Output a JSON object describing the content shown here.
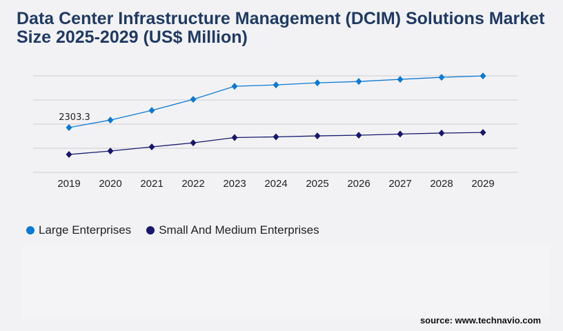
{
  "title": "Data Center Infrastructure Management (DCIM) Solutions Market Size 2025-2029 (US$ Million)",
  "source": "source: www.technavio.com",
  "chart_data": {
    "type": "line",
    "title": "Data Center Infrastructure Management (DCIM) Solutions Market Size 2025-2029 (US$ Million)",
    "categories": [
      "2019",
      "2020",
      "2021",
      "2022",
      "2023",
      "2024",
      "2025",
      "2026",
      "2027",
      "2028",
      "2029"
    ],
    "series": [
      {
        "name": "Large Enterprises",
        "color": "#0a7ad4",
        "values": [
          2303.3,
          2690,
          3185,
          3750,
          4425,
          4495,
          4600,
          4670,
          4780,
          4885,
          4955
        ]
      },
      {
        "name": "Small And Medium Enterprises",
        "color": "#17176e",
        "values": [
          920,
          1097,
          1310,
          1520,
          1790,
          1825,
          1875,
          1910,
          1970,
          2020,
          2050
        ]
      }
    ],
    "data_labels": [
      {
        "series": 0,
        "index": 0,
        "text": "2303.3"
      }
    ],
    "ylim": [
      0,
      4960
    ],
    "grid": true,
    "legend": "bottom-left",
    "xlabel": "",
    "ylabel": ""
  }
}
